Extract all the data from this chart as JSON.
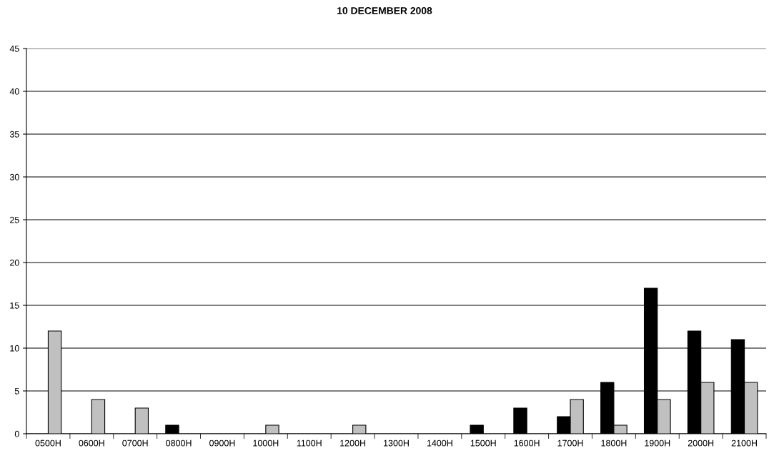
{
  "chart_data": {
    "type": "bar",
    "title": "10 DECEMBER 2008",
    "categories": [
      "0500H",
      "0600H",
      "0700H",
      "0800H",
      "0900H",
      "1000H",
      "1100H",
      "1200H",
      "1300H",
      "1400H",
      "1500H",
      "1600H",
      "1700H",
      "1800H",
      "1900H",
      "2000H",
      "2100H"
    ],
    "series": [
      {
        "color": "#000000",
        "values": [
          0,
          0,
          0,
          1,
          0,
          0,
          0,
          0,
          0,
          0,
          1,
          3,
          2,
          6,
          17,
          12,
          11
        ]
      },
      {
        "color": "#c0c0c0",
        "values": [
          12,
          4,
          3,
          0,
          0,
          1,
          0,
          1,
          0,
          0,
          0,
          0,
          4,
          1,
          4,
          6,
          6
        ]
      }
    ],
    "ylim": [
      0,
      45
    ],
    "yticks": [
      0,
      5,
      10,
      15,
      20,
      25,
      30,
      35,
      40,
      45
    ],
    "grid": "y",
    "legend": false
  }
}
